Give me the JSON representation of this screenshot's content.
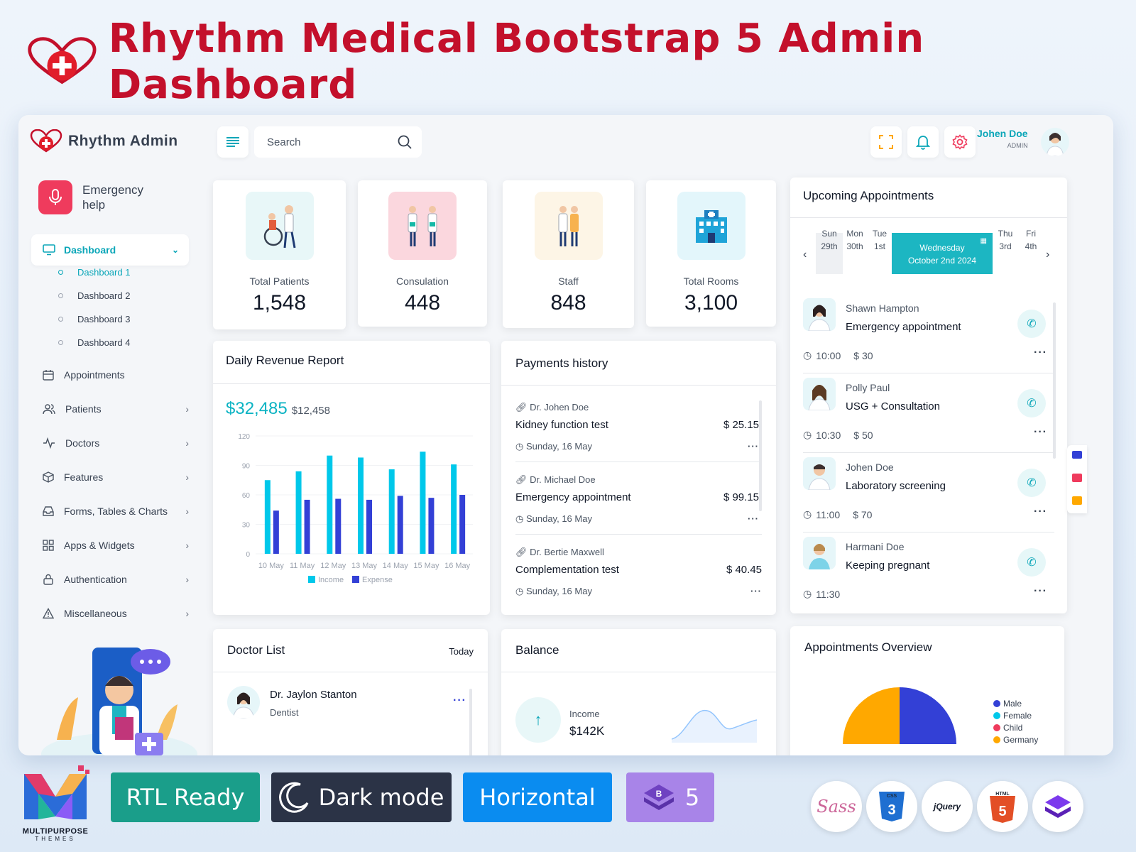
{
  "banner": {
    "title": "Rhythm Medical Bootstrap 5 Admin Dashboard"
  },
  "brand": {
    "name": "Rhythm Admin"
  },
  "search": {
    "placeholder": "Search"
  },
  "user": {
    "name": "Johen Doe",
    "role": "ADMIN"
  },
  "emergency": {
    "label": "Emergency help"
  },
  "sidebar": {
    "active": "Dashboard",
    "sub": [
      "Dashboard 1",
      "Dashboard 2",
      "Dashboard 3",
      "Dashboard 4"
    ],
    "items": [
      "Appointments",
      "Patients",
      "Doctors",
      "Features",
      "Forms, Tables & Charts",
      "Apps & Widgets",
      "Authentication",
      "Miscellaneous"
    ]
  },
  "stats": [
    {
      "label": "Total Patients",
      "value": "1,548",
      "color": "#e8f7f8"
    },
    {
      "label": "Consulation",
      "value": "448",
      "color": "#fbd7de"
    },
    {
      "label": "Staff",
      "value": "848",
      "color": "#fdf5e6"
    },
    {
      "label": "Total Rooms",
      "value": "3,100",
      "color": "#e3f6fb"
    }
  ],
  "revenue": {
    "title": "Daily Revenue Report",
    "main": "$32,485",
    "sub": "$12,458"
  },
  "chart_data": {
    "type": "bar",
    "categories": [
      "10 May",
      "11 May",
      "12 May",
      "13 May",
      "14 May",
      "15 May",
      "16 May"
    ],
    "series": [
      {
        "name": "Income",
        "color": "#00c8ea",
        "values": [
          75,
          84,
          100,
          98,
          86,
          104,
          91
        ]
      },
      {
        "name": "Expense",
        "color": "#3340d6",
        "values": [
          44,
          55,
          56,
          55,
          59,
          57,
          60
        ]
      }
    ],
    "yticks": [
      0,
      30,
      60,
      90,
      120
    ],
    "ylim": [
      0,
      120
    ],
    "legend": "bottom"
  },
  "payments": {
    "title": "Payments history",
    "rows": [
      {
        "doctor": "Dr. Johen Doe",
        "test": "Kidney function test",
        "amount": "$ 25.15",
        "date": "Sunday, 16 May"
      },
      {
        "doctor": "Dr. Michael Doe",
        "test": "Emergency appointment",
        "amount": "$ 99.15",
        "date": "Sunday, 16 May"
      },
      {
        "doctor": "Dr. Bertie Maxwell",
        "test": "Complementation test",
        "amount": "$ 40.45",
        "date": "Sunday, 16 May"
      }
    ]
  },
  "appointments": {
    "title": "Upcoming Appointments",
    "days": [
      {
        "d": "Sun",
        "n": "29th"
      },
      {
        "d": "Mon",
        "n": "30th"
      },
      {
        "d": "Tue",
        "n": "1st"
      },
      {
        "d": "Thu",
        "n": "3rd"
      },
      {
        "d": "Fri",
        "n": "4th"
      }
    ],
    "selected": {
      "d": "Wednesday",
      "n": "October 2nd 2024"
    },
    "list": [
      {
        "name": "Shawn Hampton",
        "type": "Emergency appointment",
        "time": "10:00",
        "price": "$ 30"
      },
      {
        "name": "Polly Paul",
        "type": "USG + Consultation",
        "time": "10:30",
        "price": "$ 50"
      },
      {
        "name": "Johen Doe",
        "type": "Laboratory screening",
        "time": "11:00",
        "price": "$ 70"
      },
      {
        "name": "Harmani Doe",
        "type": "Keeping pregnant",
        "time": "11:30",
        "price": ""
      }
    ]
  },
  "doctors": {
    "title": "Doctor List",
    "filter": "Today",
    "first": {
      "name": "Dr. Jaylon Stanton",
      "role": "Dentist"
    }
  },
  "balance": {
    "title": "Balance",
    "label": "Income",
    "value": "$142K"
  },
  "overview": {
    "title": "Appointments Overview",
    "legend": [
      {
        "name": "Male",
        "color": "#3340d6"
      },
      {
        "name": "Female",
        "color": "#00c8ea"
      },
      {
        "name": "Child",
        "color": "#ef3b5d"
      },
      {
        "name": "Germany",
        "color": "#ffa800"
      }
    ]
  },
  "pills": {
    "rtl": "RTL Ready",
    "dark": "Dark mode",
    "horizontal": "Horizontal",
    "bs": "5"
  },
  "footer_logo": {
    "line1": "MULTIPURPOSE",
    "line2": "THEMES"
  },
  "tech": [
    "sass-icon",
    "css3-icon",
    "jquery-icon",
    "html5-icon",
    "bootstrap-icon"
  ],
  "tech_labels": {
    "css": "CSS",
    "jquery": "jQuery",
    "html": "HTML"
  }
}
